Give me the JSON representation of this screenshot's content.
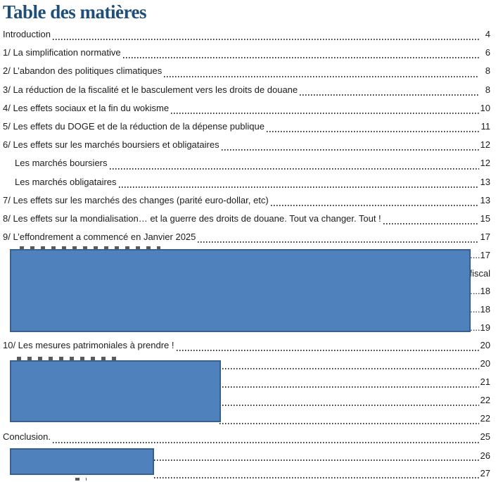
{
  "title": "Table des matières",
  "colors": {
    "title_blue": "#1F4E79",
    "body_text": "#1c1c1c",
    "redaction_fill": "#4F81BD",
    "redaction_border": "#39618E",
    "leader_dots": "#2f2f2f"
  },
  "entries_top": [
    {
      "label": "Introduction",
      "page": "4",
      "indent": 0
    },
    {
      "label": "1/ La simplification normative",
      "page": "6",
      "indent": 0
    },
    {
      "label": "2/ L’abandon des politiques climatiques",
      "page": "8",
      "indent": 0
    },
    {
      "label": "3/ La réduction de la fiscalité et le basculement vers les droits de douane",
      "page": "8",
      "indent": 0
    },
    {
      "label": "4/ Les effets sociaux et la fin du wokisme",
      "page": "10",
      "indent": 0
    },
    {
      "label": "5/ Les effets du DOGE et de la réduction de la dépense publique",
      "page": "11",
      "indent": 0
    },
    {
      "label": "6/ Les effets sur les marchés boursiers et obligataires",
      "page": "12",
      "indent": 0
    },
    {
      "label": "Les marchés boursiers",
      "page": "12",
      "indent": 1
    },
    {
      "label": "Les marchés obligataires",
      "page": "13",
      "indent": 1
    },
    {
      "label": "7/ Les effets sur les marchés des changes (parité euro-dollar, etc)",
      "page": "13",
      "indent": 0
    },
    {
      "label": "8/ Les effets sur la mondialisation… et la guerre des droits de douane. Tout va changer. Tout !",
      "page": "15",
      "indent": 0
    },
    {
      "label": "9/ L’effondrement a commencé en Janvier 2025",
      "page": "17",
      "indent": 0
    }
  ],
  "sectionA": {
    "fragments": [
      ".....17",
      "fiscal",
      "....18",
      "....18",
      "....19"
    ]
  },
  "entry10": {
    "label": "10/ Les mesures patrimoniales à prendre !",
    "page": "20"
  },
  "sectionB": {
    "pages": [
      "20",
      "21",
      "22",
      "22"
    ]
  },
  "conclusion": {
    "label": "Conclusion. ",
    "page": "25"
  },
  "sectionC": {
    "pages": [
      "26",
      "27"
    ]
  }
}
